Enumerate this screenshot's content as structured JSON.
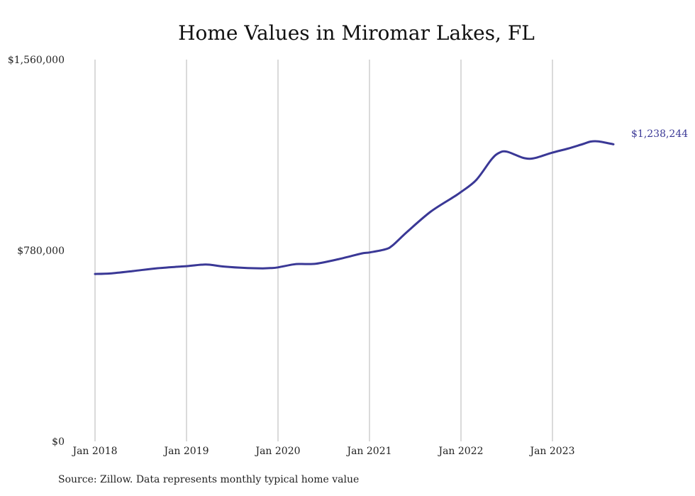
{
  "chart_data": {
    "type": "line",
    "title": "Home Values in Miromar Lakes, FL",
    "xlabel": "",
    "ylabel": "",
    "x_ticks": [
      "Jan 2018",
      "Jan 2019",
      "Jan 2020",
      "Jan 2021",
      "Jan 2022",
      "Jan 2023"
    ],
    "y_ticks": [
      "$0",
      "$780,000",
      "$1,560,000"
    ],
    "ylim": [
      0,
      1560000
    ],
    "xlim": [
      "2018-01",
      "2023-12"
    ],
    "grid": "vertical",
    "legend": "none",
    "line_color": "#3a3896",
    "x": [
      "2018-01",
      "2018-03",
      "2018-06",
      "2018-09",
      "2018-12",
      "2019-01",
      "2019-03",
      "2019-04",
      "2019-06",
      "2019-09",
      "2019-11",
      "2019-12",
      "2020-01",
      "2020-03",
      "2020-04",
      "2020-06",
      "2020-09",
      "2020-12",
      "2021-01",
      "2021-03",
      "2021-04",
      "2021-06",
      "2021-09",
      "2021-12",
      "2022-01",
      "2022-03",
      "2022-05",
      "2022-06",
      "2022-07",
      "2022-09",
      "2022-10",
      "2022-11",
      "2023-01",
      "2023-03",
      "2023-05",
      "2023-06",
      "2023-07",
      "2023-09"
    ],
    "values": [
      684000,
      686000,
      696000,
      707000,
      714000,
      716000,
      722000,
      722000,
      714000,
      708000,
      707000,
      708000,
      711000,
      723000,
      725000,
      726000,
      745000,
      768000,
      772000,
      784000,
      800000,
      858000,
      938000,
      998000,
      1019000,
      1068000,
      1152000,
      1179000,
      1184000,
      1160000,
      1155000,
      1160000,
      1180000,
      1196000,
      1215000,
      1225000,
      1226000,
      1214000
    ],
    "end_label": "$1,238,244",
    "source": "Source: Zillow. Data represents monthly typical home value"
  }
}
